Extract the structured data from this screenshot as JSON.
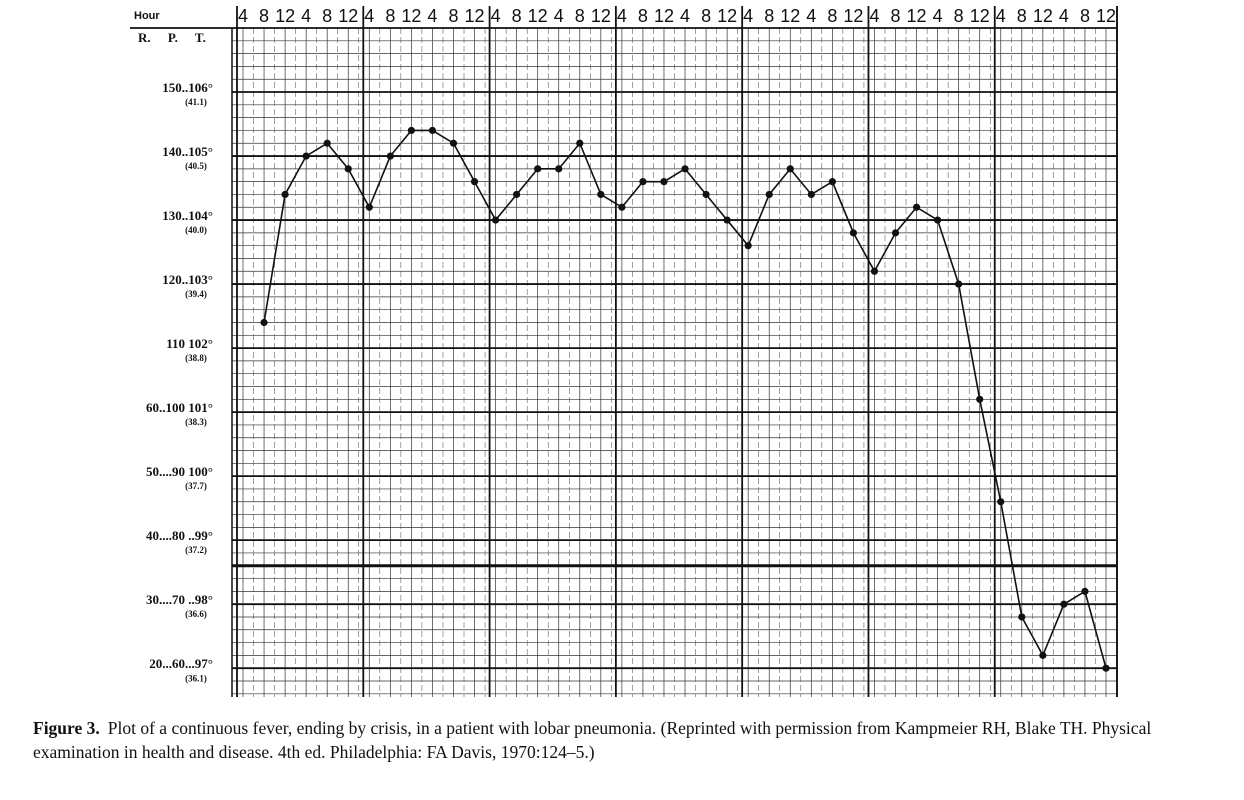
{
  "chart_data": {
    "type": "line",
    "header_hour": "Hour",
    "header_rpt": "R. P. T.",
    "categories": [
      "4",
      "8",
      "12",
      "4",
      "8",
      "12",
      "4",
      "8",
      "12",
      "4",
      "8",
      "12",
      "4",
      "8",
      "12",
      "4",
      "8",
      "12",
      "4",
      "8",
      "12",
      "4",
      "8",
      "12",
      "4",
      "8",
      "12",
      "4",
      "8",
      "12",
      "4",
      "8",
      "12",
      "4",
      "8",
      "12",
      "4",
      "8",
      "12",
      "4",
      "8",
      "12"
    ],
    "series": [
      {
        "color": "#111111",
        "values": [
          null,
          102.4,
          104.4,
          105.0,
          105.2,
          104.8,
          104.2,
          105.0,
          105.4,
          105.4,
          105.2,
          104.6,
          104.0,
          104.4,
          104.8,
          104.8,
          105.2,
          104.4,
          104.2,
          104.6,
          104.6,
          104.8,
          104.4,
          104.0,
          103.6,
          104.4,
          104.8,
          104.4,
          104.6,
          103.8,
          103.2,
          103.8,
          104.2,
          104.0,
          103.0,
          101.2,
          99.6,
          97.8,
          97.2,
          98.0,
          98.2,
          97.0
        ]
      }
    ],
    "ylim": [
      96.55,
      107
    ],
    "yticks": [
      {
        "value": 106,
        "label": "150..106°"
      },
      {
        "value": 105,
        "label": "140..105°"
      },
      {
        "value": 104,
        "label": "130..104°"
      },
      {
        "value": 103,
        "label": "120..103°"
      },
      {
        "value": 102,
        "label": "110  102°"
      },
      {
        "value": 101,
        "label": "60..100  101°"
      },
      {
        "value": 100,
        "label": "50....90  100°"
      },
      {
        "value": 99,
        "label": "40....80 ..99°"
      },
      {
        "value": 98,
        "label": "30....70 ..98°"
      },
      {
        "value": 97,
        "label": "20...60...97°"
      }
    ],
    "ytick_sublabels": [
      "(41.1)",
      "(40.5)",
      "(40.0)",
      "(39.4)",
      "(38.8)",
      "(38.3)",
      "(37.7)",
      "(37.2)",
      "(36.6)",
      "(36.1)"
    ],
    "reference_line": 98.6,
    "grid": true,
    "caption_label": "Figure 3.",
    "caption_text": "Plot of a continuous fever, ending by crisis, in a patient with lobar pneumonia. (Reprinted with permission from Kampmeier RH, Blake TH. Physical examination in health and disease. 4th ed. Philadelphia: FA Davis, 1970:124–5.)"
  }
}
